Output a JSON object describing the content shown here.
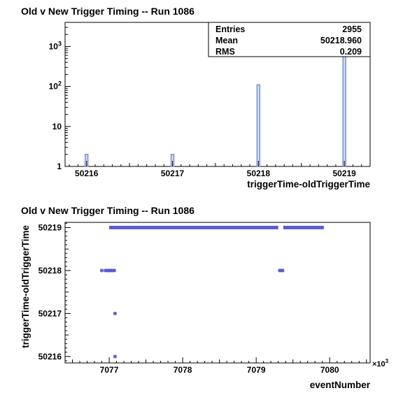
{
  "chart_data": [
    {
      "type": "histogram",
      "title": "Old v New Trigger Timing -- Run 1086",
      "xlabel": "triggerTime-oldTriggerTime",
      "ylabel": "",
      "xlim": [
        50215.75,
        50219.3
      ],
      "ylim": [
        1,
        4000
      ],
      "log_y": true,
      "grid": false,
      "x_ticks": [
        "50216",
        "50217",
        "50218",
        "50219"
      ],
      "y_ticks": [
        "1",
        "10",
        "10^2",
        "10^3"
      ],
      "bins": [
        {
          "x": 50216,
          "count": 2
        },
        {
          "x": 50217,
          "count": 2
        },
        {
          "x": 50218,
          "count": 110
        },
        {
          "x": 50219,
          "count": 2841
        }
      ],
      "stats": [
        {
          "label": "Entries",
          "value": "2955"
        },
        {
          "label": "Mean",
          "value": "50218.960"
        },
        {
          "label": "RMS",
          "value": "0.209"
        }
      ],
      "stats_box_position": "top-right",
      "bar_color": "#6f8fc8"
    },
    {
      "type": "scatter",
      "title": "Old v New Trigger Timing -- Run 1086",
      "xlabel": "eventNumber",
      "ylabel": "triggerTime-oldTriggerTime",
      "x_exponent_label": "×10",
      "x_exponent_power": "3",
      "xlim": [
        7076.4,
        7080.55
      ],
      "ylim": [
        50215.85,
        50219.12
      ],
      "grid": false,
      "x_ticks": [
        "7077",
        "7078",
        "7079",
        "7080"
      ],
      "y_ticks": [
        "50216",
        "50217",
        "50218",
        "50219"
      ],
      "marker_color": "#5a5ad2",
      "points": [
        {
          "x": 7076.9,
          "y": 50218
        },
        {
          "x": 7076.95,
          "y": 50218
        },
        {
          "x": 7076.97,
          "y": 50218
        },
        {
          "x": 7076.99,
          "y": 50218
        },
        {
          "x": 7077.01,
          "y": 50218
        },
        {
          "x": 7077.03,
          "y": 50218
        },
        {
          "x": 7077.05,
          "y": 50218
        },
        {
          "x": 7077.07,
          "y": 50218
        },
        {
          "x": 7077.08,
          "y": 50217
        },
        {
          "x": 7077.08,
          "y": 50216
        },
        {
          "x": 7079.32,
          "y": 50218
        },
        {
          "x": 7079.34,
          "y": 50218
        },
        {
          "x": 7079.36,
          "y": 50218
        }
      ],
      "bands": [
        {
          "x_start": 7077.0,
          "x_end": 7079.3,
          "y": 50219
        },
        {
          "x_start": 7079.37,
          "x_end": 7079.92,
          "y": 50219
        }
      ]
    }
  ]
}
